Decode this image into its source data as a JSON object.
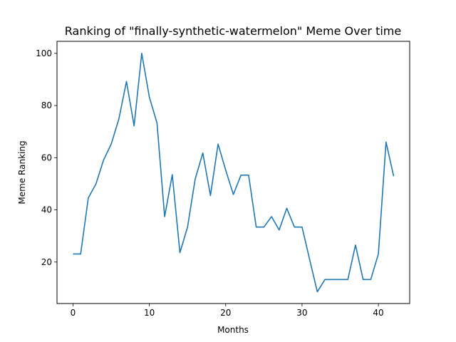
{
  "chart_data": {
    "type": "line",
    "title": "Ranking of \"finally-synthetic-watermelon\" Meme Over time",
    "xlabel": "Months",
    "ylabel": "Meme Ranking",
    "xlim": [
      -2.1,
      44.1
    ],
    "ylim": [
      4.1,
      104.6
    ],
    "xticks": [
      0,
      10,
      20,
      30,
      40
    ],
    "yticks": [
      20,
      40,
      60,
      80,
      100
    ],
    "grid": false,
    "color": "#1f77b4",
    "x": [
      0,
      1,
      2,
      3,
      4,
      5,
      6,
      7,
      8,
      9,
      10,
      11,
      12,
      13,
      14,
      15,
      16,
      17,
      18,
      19,
      20,
      21,
      22,
      23,
      24,
      25,
      26,
      27,
      28,
      29,
      30,
      31,
      32,
      33,
      34,
      35,
      36,
      37,
      38,
      39,
      40,
      41,
      42
    ],
    "values": [
      23.1,
      23.1,
      44.6,
      49.9,
      59.1,
      65.2,
      74.8,
      89.2,
      72.2,
      100.0,
      83.2,
      73.3,
      37.4,
      53.5,
      23.6,
      33.4,
      51.8,
      61.8,
      45.5,
      65.2,
      55.2,
      45.9,
      53.3,
      53.3,
      33.4,
      33.4,
      37.4,
      32.3,
      40.6,
      33.4,
      33.4,
      20.9,
      8.6,
      13.3,
      13.3,
      13.3,
      13.3,
      26.5,
      13.3,
      13.3,
      23.1,
      66.0,
      52.9
    ]
  }
}
